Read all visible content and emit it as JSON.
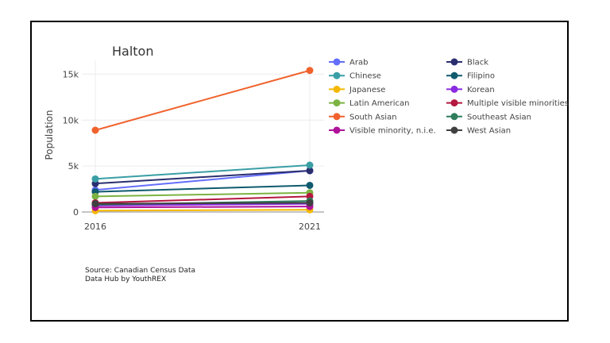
{
  "chart_data": {
    "type": "line",
    "title": "Halton",
    "ylabel": "Population",
    "xlabel": "",
    "x": [
      "2016",
      "2021"
    ],
    "ylim": [
      -600,
      16500
    ],
    "yticks": [
      0,
      5000,
      10000,
      15000
    ],
    "ytick_labels": [
      "0",
      "5k",
      "10k",
      "15k"
    ],
    "grid": true,
    "legend_position": "right",
    "series": [
      {
        "name": "Arab",
        "color": "#636efa",
        "values": [
          2400,
          4500
        ]
      },
      {
        "name": "Black",
        "color": "#2a2e6e",
        "values": [
          3100,
          4500
        ]
      },
      {
        "name": "Chinese",
        "color": "#3a9ea5",
        "values": [
          3600,
          5100
        ]
      },
      {
        "name": "Filipino",
        "color": "#0f5a6e",
        "values": [
          2200,
          2900
        ]
      },
      {
        "name": "Japanese",
        "color": "#f5b800",
        "values": [
          150,
          250
        ]
      },
      {
        "name": "Korean",
        "color": "#8a2be2",
        "values": [
          700,
          900
        ]
      },
      {
        "name": "Latin American",
        "color": "#7cb342",
        "values": [
          1700,
          2100
        ]
      },
      {
        "name": "Multiple visible minorities",
        "color": "#b5173f",
        "values": [
          1000,
          1700
        ]
      },
      {
        "name": "South Asian",
        "color": "#f0622d",
        "values": [
          8900,
          15400
        ]
      },
      {
        "name": "Southeast Asian",
        "color": "#2e7d5b",
        "values": [
          800,
          1200
        ]
      },
      {
        "name": "Visible minority, n.i.e.",
        "color": "#b0129a",
        "values": [
          500,
          600
        ]
      },
      {
        "name": "West Asian",
        "color": "#404040",
        "values": [
          900,
          1000
        ]
      }
    ]
  },
  "source": {
    "line1": "Source: Canadian Census Data",
    "line2": "Data Hub by YouthREX"
  }
}
